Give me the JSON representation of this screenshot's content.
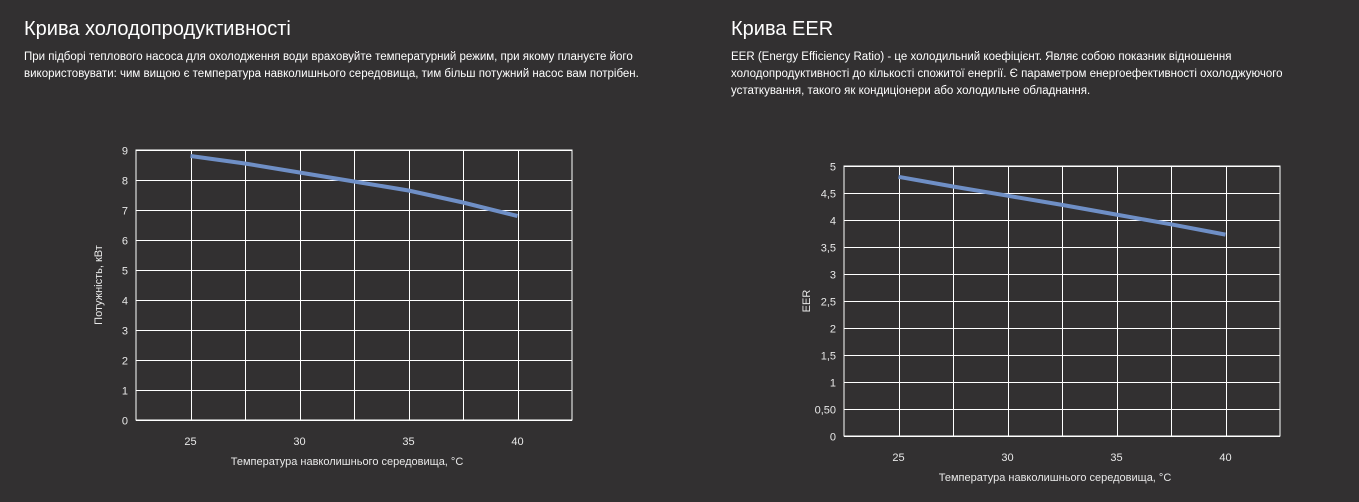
{
  "panels": {
    "left": {
      "title": "Крива холодопродуктивності",
      "description": "При підборі теплового насоса для охолодження води враховуйте температурний режим, при якому плануєте його використовувати: чим вищою є температура навколишнього середовища, тим більш потужний насос вам потрібен."
    },
    "right": {
      "title": "Крива EER",
      "description": "EER (Energy Efficiency Ratio) - це холодильний коефіцієнт. Являє собою показник відношення холодопродуктивності до кількості спожитої енергії. Є параметром енергоефективності охолоджуючого устаткування, такого як кондиціонери або холодильне обладнання."
    }
  },
  "colors": {
    "background": "#323031",
    "grid": "#ffffff",
    "line": "#6f8fc6",
    "text": "#ffffff"
  },
  "chart_data": [
    {
      "type": "line",
      "title": "Крива холодопродуктивності",
      "xlabel": "Температура навколишнього середовища, °C",
      "ylabel": "Потужність, кВт",
      "xlim": [
        22.5,
        42.5
      ],
      "ylim": [
        0,
        9
      ],
      "x_ticks": [
        "25",
        "30",
        "35",
        "40"
      ],
      "x_tick_values": [
        25,
        30,
        35,
        40
      ],
      "y_ticks": [
        "0",
        "1",
        "2",
        "3",
        "4",
        "5",
        "6",
        "7",
        "8",
        "9"
      ],
      "y_tick_values": [
        0,
        1,
        2,
        3,
        4,
        5,
        6,
        7,
        8,
        9
      ],
      "grid": true,
      "series": [
        {
          "x": [
            25,
            27.5,
            30,
            32.5,
            35,
            37.5,
            40
          ],
          "y": [
            8.8,
            8.55,
            8.25,
            7.95,
            7.65,
            7.25,
            6.8
          ]
        }
      ]
    },
    {
      "type": "line",
      "title": "Крива EER",
      "xlabel": "Температура навколишнього середовища, °C",
      "ylabel": "EER",
      "xlim": [
        22.5,
        42.5
      ],
      "ylim": [
        0,
        5
      ],
      "x_ticks": [
        "25",
        "30",
        "35",
        "40"
      ],
      "x_tick_values": [
        25,
        30,
        35,
        40
      ],
      "y_ticks": [
        "0",
        "0,50",
        "1",
        "1,5",
        "2",
        "2,5",
        "3",
        "3,5",
        "4",
        "4,5",
        "5"
      ],
      "y_tick_values": [
        0,
        0.5,
        1,
        1.5,
        2,
        2.5,
        3,
        3.5,
        4,
        4.5,
        5
      ],
      "grid": true,
      "series": [
        {
          "x": [
            25,
            27.5,
            30,
            32.5,
            35,
            37.5,
            40
          ],
          "y": [
            4.8,
            4.62,
            4.45,
            4.28,
            4.1,
            3.92,
            3.73
          ]
        }
      ]
    }
  ]
}
